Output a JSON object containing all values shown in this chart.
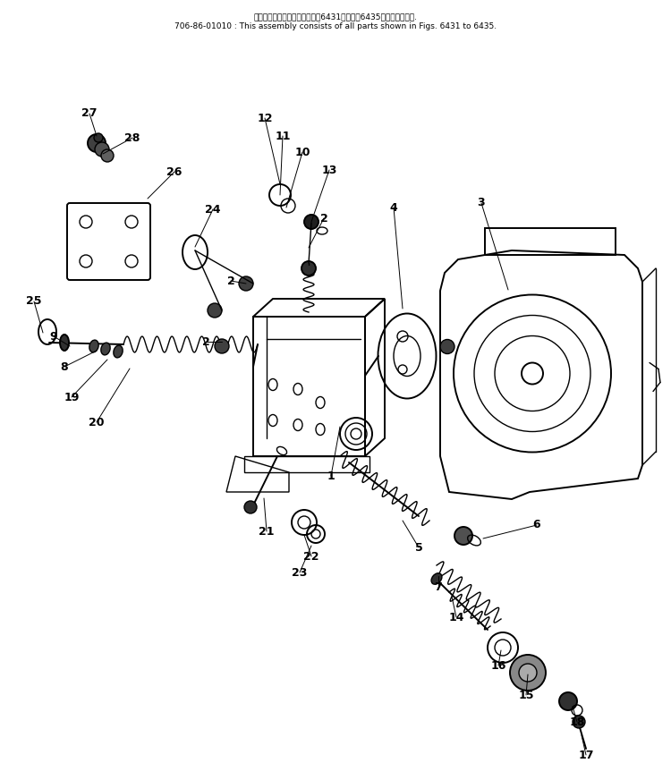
{
  "title_line1": "このアセンブリの構成部品は第6431図から第6435図まで含みます.",
  "title_line2": "706-86-01010 : This assembly consists of all parts shown in Figs. 6431 to 6435.",
  "bg_color": "#ffffff",
  "lc": "#000000",
  "fig_w": 7.5,
  "fig_h": 8.72,
  "dpi": 100
}
